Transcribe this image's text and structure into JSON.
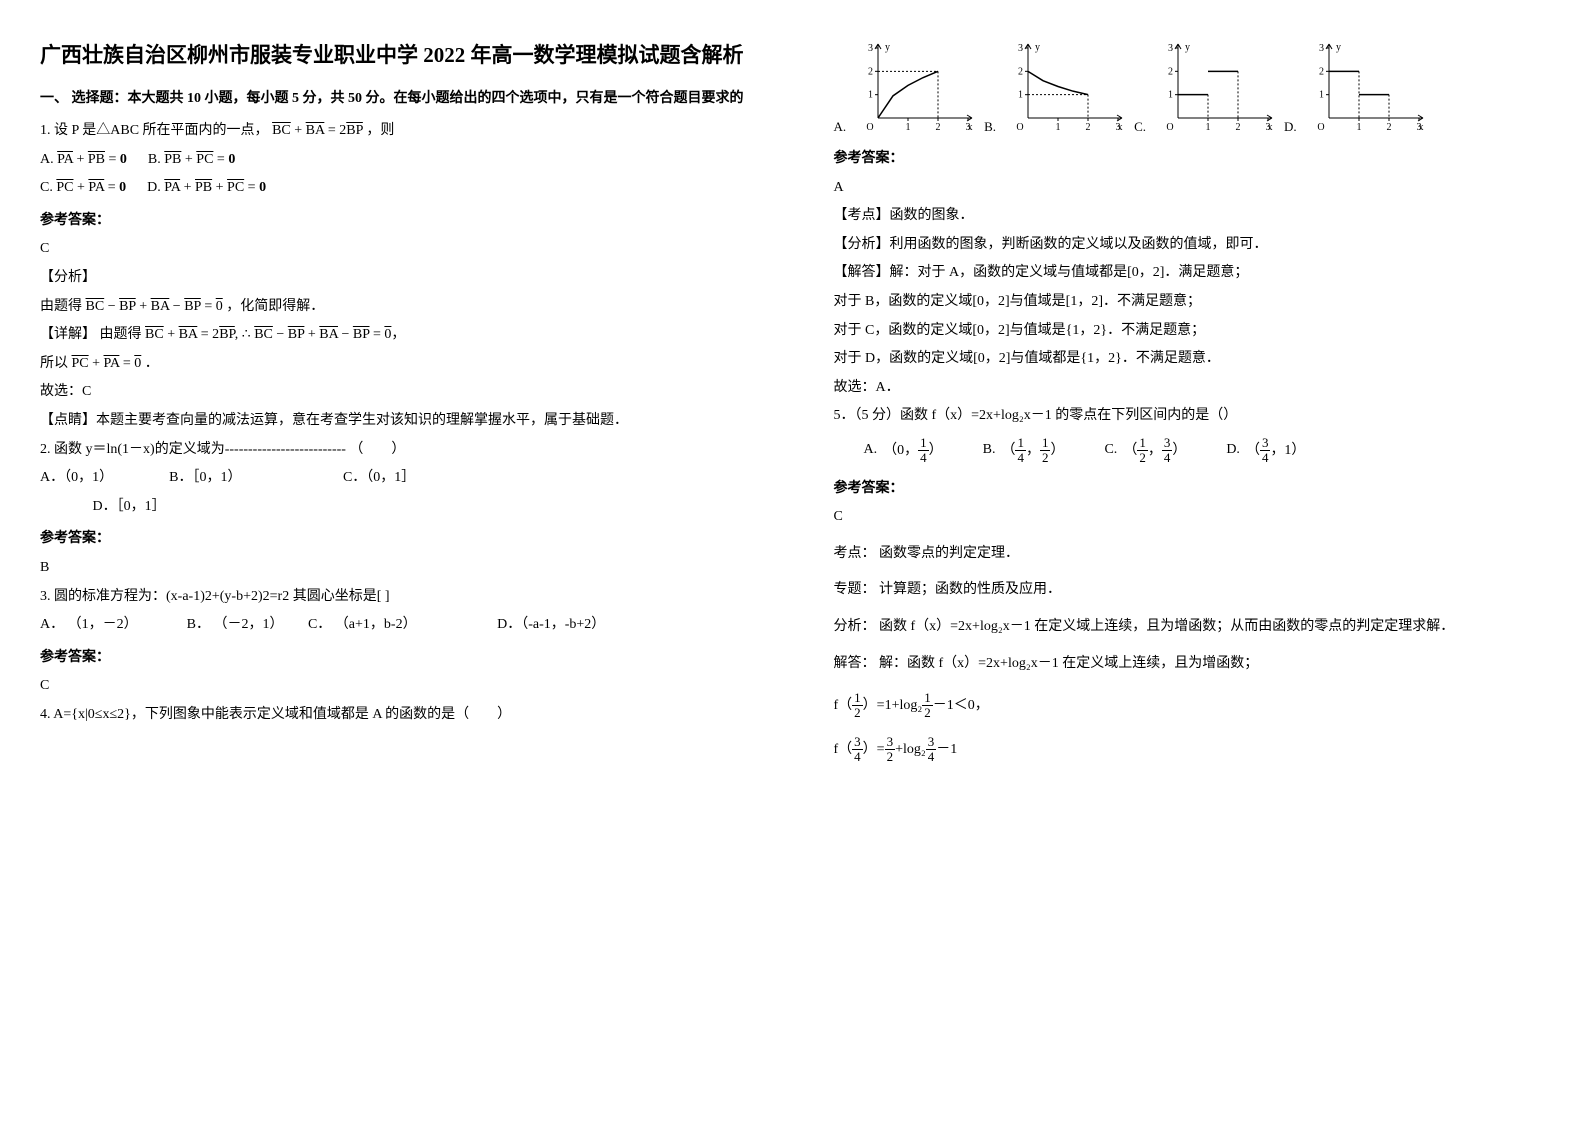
{
  "title": "广西壮族自治区柳州市服装专业职业中学 2022 年高一数学理模拟试题含解析",
  "section1": "一、 选择题：本大题共 10 小题，每小题 5 分，共 50 分。在每小题给出的四个选项中，只有是一个符合题目要求的",
  "q1": {
    "stem_prefix": "1. 设 P 是△ABC 所在平面内的一点，",
    "stem_eq": "BC + BA = 2BP",
    "stem_suffix": "，则",
    "optA_label": "A.",
    "optA": "PA + PB = 0",
    "optB_label": "B.",
    "optB": "PB + PC = 0",
    "optC_label": "C.",
    "optC": "PC + PA = 0",
    "optD_label": "D.",
    "optD": "PA + PB + PC = 0",
    "ans_head": "参考答案：",
    "ans": "C",
    "analysis_head": "【分析】",
    "analysis_a": "由题得",
    "analysis_b": "BC − BP + BA − BP = 0",
    "analysis_c": "，化简即得解．",
    "detail_head": "【详解】",
    "detail_a": "由题得",
    "detail_b": "BC + BA = 2BP, ∴ BC − BP + BA − BP = 0",
    "suoyi_a": "所以",
    "suoyi_b": "PC + PA = 0",
    "suoyi_c": "．",
    "gu": "故选：C",
    "dianjing": "【点睛】本题主要考查向量的减法运算，意在考查学生对该知识的理解掌握水平，属于基础题．"
  },
  "q2": {
    "stem": "2. 函数 y＝ln(1－x)的定义域为-------------------------- （　　）",
    "optsA": "A．（0，1）",
    "optsB": "B．［0，1）",
    "optsC": "C．（0，1］",
    "optsD": "D．［0，1］",
    "ans_head": "参考答案：",
    "ans": "B"
  },
  "q3": {
    "stem": "3. 圆的标准方程为：(x-a-1)2+(y-b+2)2=r2 其圆心坐标是[  ]",
    "optA": "A． （1，－2）",
    "optB": "B． （－2，1）",
    "optC": "C． （a+1，b-2）",
    "optD": "D．（-a-1，-b+2）",
    "ans_head": "参考答案：",
    "ans": "C"
  },
  "q4": {
    "stem": "4. A={x|0≤x≤2}，下列图象中能表示定义域和值域都是 A 的函数的是（　　）"
  },
  "graphs": {
    "labels": {
      "A": "A.",
      "B": "B.",
      "C": "C.",
      "D": "D."
    },
    "axis_color": "#000000",
    "curve_color": "#000000",
    "width": 120,
    "height": 100,
    "xlim": [
      0,
      3
    ],
    "ylim": [
      0,
      3
    ],
    "xticks": [
      1,
      2,
      3
    ],
    "yticks": [
      1,
      2,
      3
    ],
    "x_label": "x",
    "y_label": "y",
    "origin_label": "O",
    "A": {
      "type": "curve",
      "points": [
        [
          0,
          0
        ],
        [
          0.5,
          0.95
        ],
        [
          1,
          1.4
        ],
        [
          1.5,
          1.73
        ],
        [
          2,
          2
        ]
      ]
    },
    "B": {
      "type": "curve",
      "points": [
        [
          0,
          2
        ],
        [
          0.5,
          1.6
        ],
        [
          1,
          1.35
        ],
        [
          1.5,
          1.15
        ],
        [
          2,
          1
        ]
      ]
    },
    "C": {
      "type": "step",
      "segments": [
        [
          [
            0,
            1
          ],
          [
            1,
            1
          ]
        ],
        [
          [
            1,
            2
          ],
          [
            2,
            2
          ]
        ]
      ]
    },
    "D": {
      "type": "step",
      "segments": [
        [
          [
            0,
            2
          ],
          [
            1,
            2
          ]
        ],
        [
          [
            1,
            1
          ],
          [
            2,
            1
          ]
        ]
      ]
    }
  },
  "q4ans": {
    "ans_head": "参考答案：",
    "ans": "A",
    "kd": "【考点】函数的图象．",
    "fx": "【分析】利用函数的图象，判断函数的定义域以及函数的值域，即可．",
    "jd_head": "【解答】解：对于 A，函数的定义域与值域都是[0，2]．满足题意；",
    "jdB": "对于 B，函数的定义域[0，2]与值域是[1，2]．不满足题意；",
    "jdC": "对于 C，函数的定义域[0，2]与值域是{1，2}．不满足题意；",
    "jdD": "对于 D，函数的定义域[0，2]与值域都是{1，2}．不满足题意．",
    "gu": "故选：A．"
  },
  "q5": {
    "stem": "5．（5 分）函数 f（x）=2x+log₂x－1 的零点在下列区间内的是（）",
    "optA_label": "A.",
    "optA_a": "（0，",
    "optA_b": "）",
    "optB_label": "B.",
    "optB_a": "（",
    "optB_m": "，",
    "optB_b": "）",
    "optC_label": "C.",
    "optC_a": "（",
    "optC_m": "，",
    "optC_b": "）",
    "optD_label": "D.",
    "optD_a": "（",
    "optD_b": "，1）",
    "ans_head": "参考答案：",
    "ans": "C",
    "kd": "考点： 函数零点的判定定理．",
    "zt": "专题： 计算题；函数的性质及应用．",
    "fx": "分析： 函数 f（x）=2x+log₂x－1 在定义域上连续，且为增函数；从而由函数的零点的判定定理求解．",
    "jd": "解答： 解：函数 f（x）=2x+log₂x－1 在定义域上连续，且为增函数；",
    "f1_a": "f（",
    "f1_b": "）=1+log₂",
    "f1_c": "－1＜0，",
    "f2_a": "f（",
    "f2_b": "）=",
    "f2_c": "+log₂",
    "f2_d": "－1",
    "fracs": {
      "one_fourth_n": "1",
      "one_fourth_d": "4",
      "one_half_n": "1",
      "one_half_d": "2",
      "three_fourth_n": "3",
      "three_fourth_d": "4",
      "three_half_n": "3",
      "three_half_d": "2"
    }
  }
}
